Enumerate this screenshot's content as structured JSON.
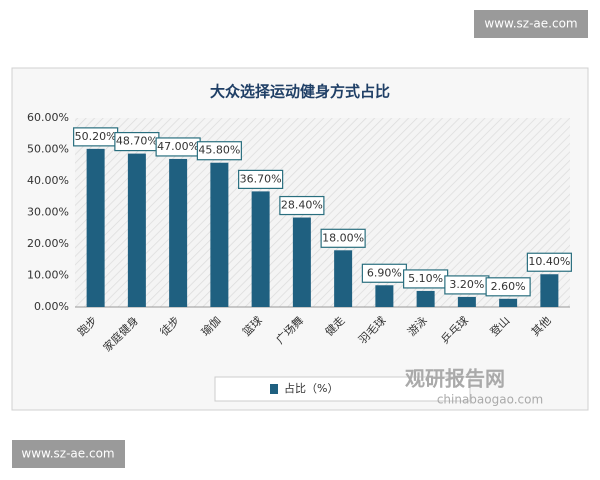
{
  "chart_data": {
    "type": "bar",
    "title": "大众选择运动健身方式占比",
    "categories": [
      "跑步",
      "家庭健身",
      "徒步",
      "瑜伽",
      "篮球",
      "广场舞",
      "健走",
      "羽毛球",
      "游泳",
      "乒乓球",
      "登山",
      "其他"
    ],
    "series": [
      {
        "name": "占比（%）",
        "color": "#1f6080",
        "values": [
          50.2,
          48.7,
          47.0,
          45.8,
          36.7,
          28.4,
          18.0,
          6.9,
          5.1,
          3.2,
          2.6,
          10.4
        ],
        "value_labels": [
          "50.20%",
          "48.70%",
          "47.00%",
          "45.80%",
          "36.70%",
          "28.40%",
          "18.00%",
          "6.90%",
          "5.10%",
          "3.20%",
          "2.60%",
          "10.40%"
        ]
      }
    ],
    "ylim": [
      0,
      60
    ],
    "yticks": [
      {
        "value": 0,
        "label": "0.00%"
      },
      {
        "value": 10,
        "label": "10.00%"
      },
      {
        "value": 20,
        "label": "20.00%"
      },
      {
        "value": 30,
        "label": "30.00%"
      },
      {
        "value": 40,
        "label": "40.00%"
      },
      {
        "value": 50,
        "label": "50.00%"
      },
      {
        "value": 60,
        "label": "60.00%"
      }
    ],
    "grid": false
  },
  "watermarks": {
    "site_top": "www.sz-ae.com",
    "site_bottom": "www.sz-ae.com",
    "brand": "观研报告网",
    "brand_url": "chinabaogao.com"
  }
}
